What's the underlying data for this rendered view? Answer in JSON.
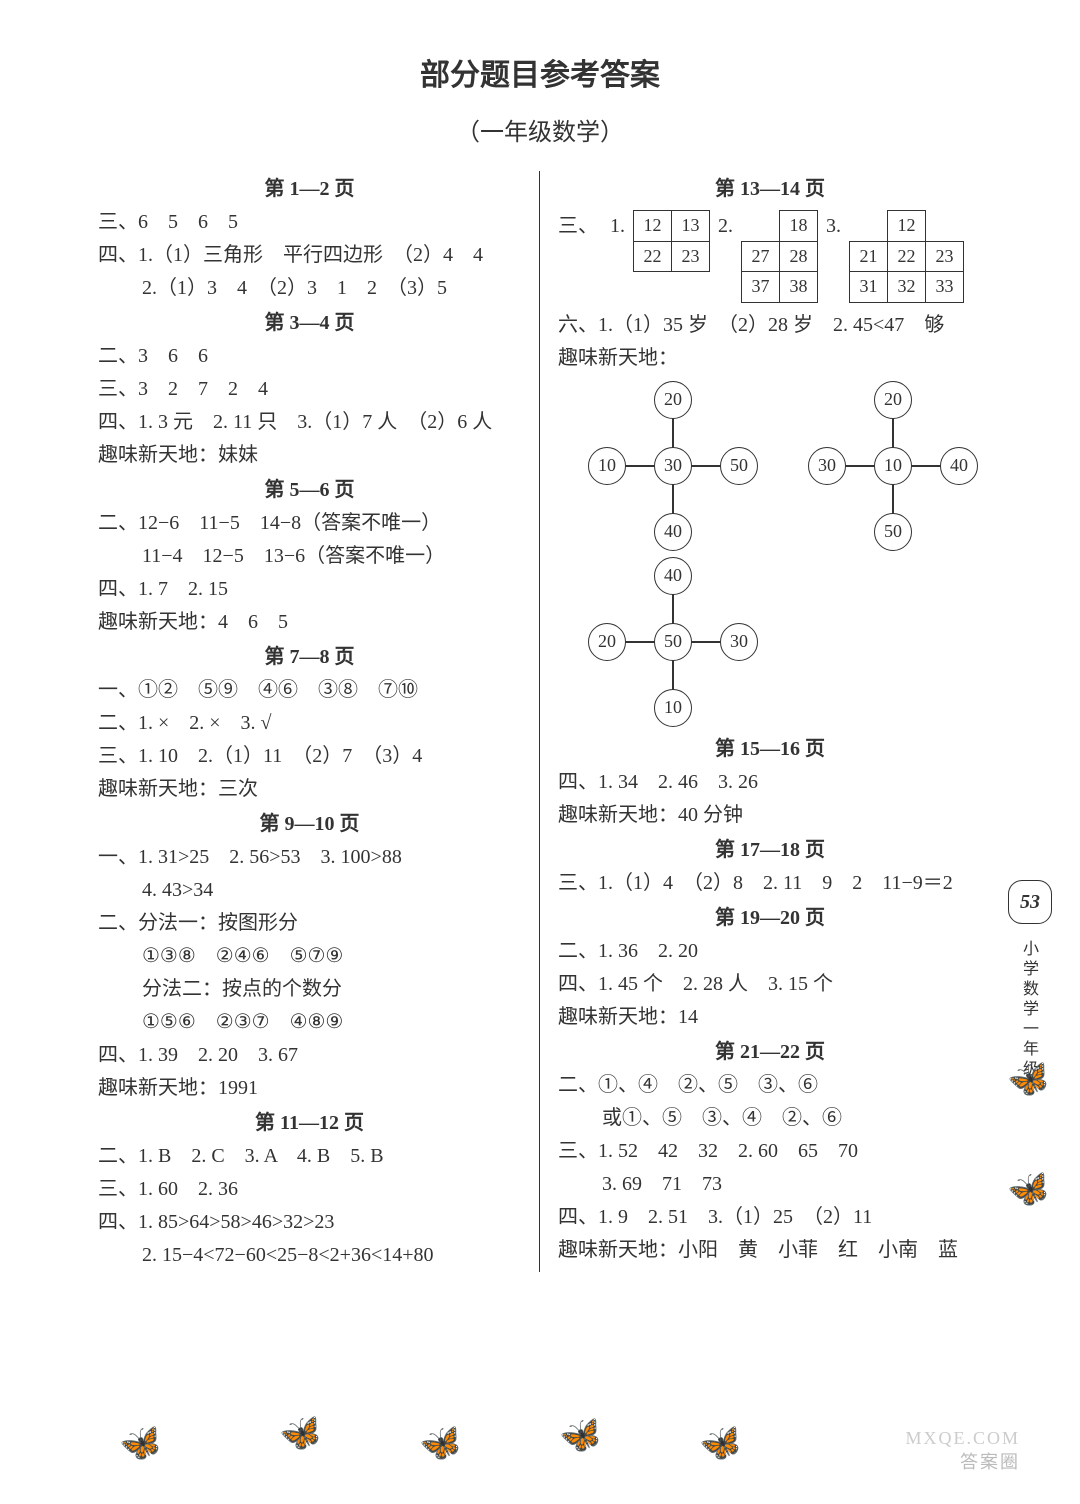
{
  "title": "部分题目参考答案",
  "subtitle": "（一年级数学）",
  "badge": "53",
  "side_label": "小学数学一年级",
  "watermark1": "答案圈",
  "watermark2": "MXQE.COM",
  "left": {
    "h1": "第 1—2 页",
    "l1": "三、6　5　6　5",
    "l2": "四、1.（1）三角形　平行四边形　（2）4　4",
    "l3": "2.（1）3　4　（2）3　1　2　（3）5",
    "h2": "第 3—4 页",
    "l4": "二、3　6　6",
    "l5": "三、3　2　7　2　4",
    "l6": "四、1. 3 元　2. 11 只　3.（1）7 人　（2）6 人",
    "l7": "趣味新天地：妹妹",
    "h3": "第 5—6 页",
    "l8": "二、12−6　11−5　14−8（答案不唯一）",
    "l9": "11−4　12−5　13−6（答案不唯一）",
    "l10": "四、1. 7　2. 15",
    "l11": "趣味新天地：4　6　5",
    "h4": "第 7—8 页",
    "l12": "一、①②　⑤⑨　④⑥　③⑧　⑦⑩",
    "l13": "二、1. ×　2. ×　3. √",
    "l14": "三、1. 10　2.（1）11　（2）7　（3）4",
    "l15": "趣味新天地：三次",
    "h5": "第 9—10 页",
    "l16": "一、1. 31>25　2. 56>53　3. 100>88",
    "l17": "4. 43>34",
    "l18": "二、分法一：按图形分",
    "l19": "①③⑧　②④⑥　⑤⑦⑨",
    "l20": "分法二：按点的个数分",
    "l21": "①⑤⑥　②③⑦　④⑧⑨",
    "l22": "四、1. 39　2. 20　3. 67",
    "l23": "趣味新天地：1991",
    "h6": "第 11—12 页",
    "l24": "二、1. B　2. C　3. A　4. B　5. B",
    "l25": "三、1. 60　2. 36",
    "l26": "四、1. 85>64>58>46>32>23",
    "l27": "2. 15−4<72−60<25−8<2+36<14+80"
  },
  "right": {
    "h1": "第 13—14 页",
    "box_label": "三、",
    "b1": "1.",
    "b2": "2.",
    "b3": "3.",
    "tbl1": [
      [
        "12",
        "13"
      ],
      [
        "22",
        "23"
      ]
    ],
    "tbl2": [
      [
        "",
        "18"
      ],
      [
        "27",
        "28"
      ],
      [
        "37",
        "38"
      ]
    ],
    "tbl3": [
      [
        "",
        "12",
        ""
      ],
      [
        "21",
        "22",
        "23"
      ],
      [
        "31",
        "32",
        "33"
      ]
    ],
    "l1": "六、1.（1）35 岁　（2）28 岁　2. 45<47　够",
    "l2": "趣味新天地：",
    "cross1": {
      "t": "20",
      "l": "10",
      "c": "30",
      "r": "50",
      "b": "40"
    },
    "cross2": {
      "t": "20",
      "l": "30",
      "c": "10",
      "r": "40",
      "b": "50"
    },
    "cross3": {
      "t": "40",
      "l": "20",
      "c": "50",
      "r": "30",
      "b": "10"
    },
    "h2": "第 15—16 页",
    "l3": "四、1. 34　2. 46　3. 26",
    "l4": "趣味新天地：40 分钟",
    "h3": "第 17—18 页",
    "l5": "三、1.（1）4　（2）8　2. 11　9　2　11−9＝2",
    "h4": "第 19—20 页",
    "l6": "二、1. 36　2. 20",
    "l7": "四、1. 45 个　2. 28 人　3. 15 个",
    "l8": "趣味新天地：14",
    "h5": "第 21—22 页",
    "l9": "二、①、④　②、⑤　③、⑥",
    "l10": "或①、⑤　③、④　②、⑥",
    "l11": "三、1. 52　42　32　2. 60　65　70",
    "l12": "3. 69　71　73",
    "l13": "四、1. 9　2. 51　3.（1）25　（2）11",
    "l14": "趣味新天地：小阳　黄　小菲　红　小南　蓝"
  },
  "style": {
    "page_bg": "#ffffff",
    "text_color": "#333333",
    "font_size_body": 20,
    "font_size_title": 30,
    "font_size_subtitle": 24,
    "line_height": 1.65,
    "table_border_color": "#333333",
    "circle_diameter": 38
  }
}
